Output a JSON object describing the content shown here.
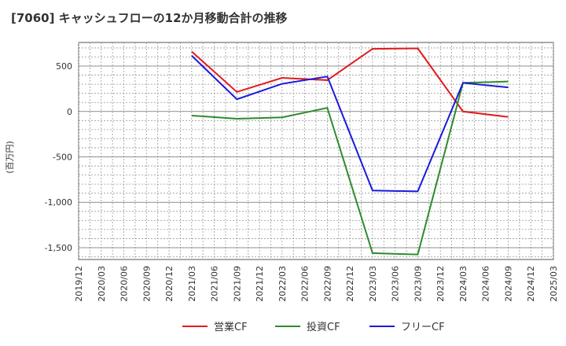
{
  "chart_data": {
    "type": "line",
    "title": "[7060]  キャッシュフローの12か月移動合計の推移",
    "ylabel": "(百万円)",
    "xlabel": "",
    "ylim": [
      -1630,
      760
    ],
    "yticks": [
      500,
      0,
      -500,
      -1000,
      -1500
    ],
    "ytick_labels": [
      "500",
      "0",
      "-500",
      "-1,000",
      "-1,500"
    ],
    "categories": [
      "2019/12",
      "2020/03",
      "2020/06",
      "2020/09",
      "2020/12",
      "2021/03",
      "2021/06",
      "2021/09",
      "2021/12",
      "2022/03",
      "2022/06",
      "2022/09",
      "2022/12",
      "2023/03",
      "2023/06",
      "2023/09",
      "2023/12",
      "2024/03",
      "2024/06",
      "2024/09",
      "2024/12",
      "2025/03"
    ],
    "grid": true,
    "legend_position": "bottom",
    "series": [
      {
        "name": "営業CF",
        "color": "#e31a1c",
        "values": [
          null,
          null,
          null,
          null,
          null,
          660,
          null,
          215,
          null,
          370,
          null,
          345,
          null,
          690,
          null,
          695,
          null,
          0,
          null,
          -60,
          null,
          null
        ]
      },
      {
        "name": "投資CF",
        "color": "#2e8b2e",
        "values": [
          null,
          null,
          null,
          null,
          null,
          -45,
          null,
          -80,
          null,
          -65,
          null,
          40,
          null,
          -1560,
          null,
          -1575,
          null,
          315,
          null,
          330,
          null,
          null
        ]
      },
      {
        "name": "フリーCF",
        "color": "#1a1adb",
        "values": [
          null,
          null,
          null,
          null,
          null,
          615,
          null,
          135,
          null,
          305,
          null,
          385,
          null,
          -870,
          null,
          -880,
          null,
          315,
          null,
          265,
          null,
          null
        ]
      }
    ]
  }
}
